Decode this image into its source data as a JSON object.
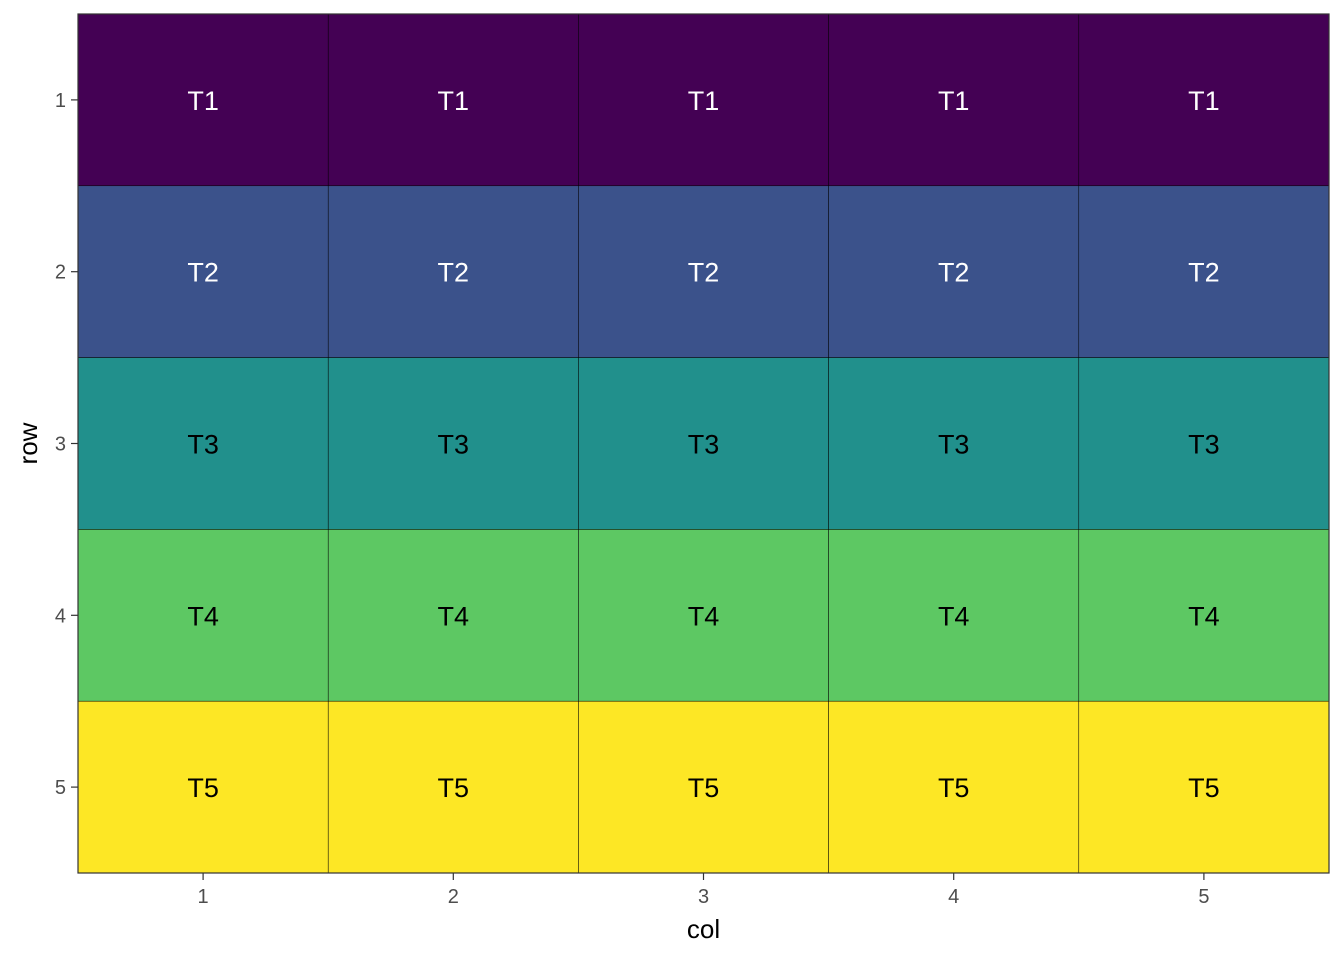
{
  "chart_data": {
    "type": "heatmap",
    "xlabel": "col",
    "ylabel": "row",
    "x_categories": [
      "1",
      "2",
      "3",
      "4",
      "5"
    ],
    "y_categories": [
      "1",
      "2",
      "3",
      "4",
      "5"
    ],
    "y_reversed": true,
    "grid": false,
    "legend": "none",
    "fill_scale": "viridis",
    "fill_colors": {
      "T1": "#440154",
      "T2": "#3B528B",
      "T3": "#21908C",
      "T4": "#5DC863",
      "T5": "#FDE725"
    },
    "label_colors": {
      "T1": "#FFFFFF",
      "T2": "#FFFFFF",
      "T3": "#000000",
      "T4": "#000000",
      "T5": "#000000"
    },
    "tile_border_color": "#000000",
    "cells": [
      {
        "row": 1,
        "col": 1,
        "label": "T1"
      },
      {
        "row": 1,
        "col": 2,
        "label": "T1"
      },
      {
        "row": 1,
        "col": 3,
        "label": "T1"
      },
      {
        "row": 1,
        "col": 4,
        "label": "T1"
      },
      {
        "row": 1,
        "col": 5,
        "label": "T1"
      },
      {
        "row": 2,
        "col": 1,
        "label": "T2"
      },
      {
        "row": 2,
        "col": 2,
        "label": "T2"
      },
      {
        "row": 2,
        "col": 3,
        "label": "T2"
      },
      {
        "row": 2,
        "col": 4,
        "label": "T2"
      },
      {
        "row": 2,
        "col": 5,
        "label": "T2"
      },
      {
        "row": 3,
        "col": 1,
        "label": "T3"
      },
      {
        "row": 3,
        "col": 2,
        "label": "T3"
      },
      {
        "row": 3,
        "col": 3,
        "label": "T3"
      },
      {
        "row": 3,
        "col": 4,
        "label": "T3"
      },
      {
        "row": 3,
        "col": 5,
        "label": "T3"
      },
      {
        "row": 4,
        "col": 1,
        "label": "T4"
      },
      {
        "row": 4,
        "col": 2,
        "label": "T4"
      },
      {
        "row": 4,
        "col": 3,
        "label": "T4"
      },
      {
        "row": 4,
        "col": 4,
        "label": "T4"
      },
      {
        "row": 4,
        "col": 5,
        "label": "T4"
      },
      {
        "row": 5,
        "col": 1,
        "label": "T5"
      },
      {
        "row": 5,
        "col": 2,
        "label": "T5"
      },
      {
        "row": 5,
        "col": 3,
        "label": "T5"
      },
      {
        "row": 5,
        "col": 4,
        "label": "T5"
      },
      {
        "row": 5,
        "col": 5,
        "label": "T5"
      }
    ]
  }
}
